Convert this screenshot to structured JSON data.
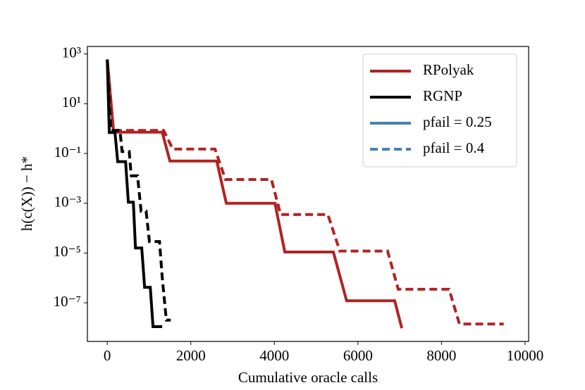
{
  "chart_data": {
    "type": "line",
    "log_y": true,
    "x_label": "Cumulative oracle calls",
    "y_label": "h(c(X)) − h*",
    "xlim": [
      -475,
      10085
    ],
    "xticks": [
      0,
      2000,
      4000,
      6000,
      8000,
      10000
    ],
    "ylim": [
      2.8e-09,
      2000
    ],
    "yticks": [
      {
        "value": 1e-07,
        "label": "10⁻⁷"
      },
      {
        "value": 1e-05,
        "label": "10⁻⁵"
      },
      {
        "value": 0.001,
        "label": "10⁻³"
      },
      {
        "value": 0.1,
        "label": "10⁻¹"
      },
      {
        "value": 10,
        "label": "10¹"
      },
      {
        "value": 1000,
        "label": "10³"
      }
    ],
    "legend": [
      {
        "label": "RPolyak",
        "color": "#b22222",
        "dashed": false
      },
      {
        "label": "RGNP",
        "color": "#000000",
        "dashed": false
      },
      {
        "label": "pfail = 0.25",
        "color": "#4682b4",
        "dashed": false
      },
      {
        "label": "pfail = 0.4",
        "color": "#4682b4",
        "dashed": true
      }
    ],
    "legend_position": "upper right",
    "series": [
      {
        "color": "#b22222",
        "dashed": false,
        "x": [
          0,
          150,
          1315,
          1500,
          2620,
          2850,
          4013,
          4250,
          5413,
          5730,
          6880,
          7050
        ],
        "values": [
          600,
          0.72,
          0.72,
          0.05,
          0.05,
          0.001,
          0.001,
          1.1e-05,
          1.1e-05,
          1.2e-07,
          1.2e-07,
          9.5e-09
        ]
      },
      {
        "color": "#b22222",
        "dashed": true,
        "x": [
          0,
          150,
          1350,
          1570,
          2580,
          2830,
          3930,
          4150,
          5280,
          5565,
          6710,
          6965,
          8180,
          8430,
          9490
        ],
        "values": [
          600,
          0.85,
          0.85,
          0.15,
          0.15,
          0.009,
          0.009,
          0.00035,
          0.00035,
          1.2e-05,
          1.2e-05,
          3.5e-07,
          3.5e-07,
          1.4e-08,
          1.4e-08
        ]
      },
      {
        "color": "#000000",
        "dashed": false,
        "x": [
          0,
          50,
          185,
          250,
          440,
          505,
          625,
          675,
          825,
          895,
          1030,
          1095,
          1315
        ],
        "values": [
          600,
          0.7,
          0.7,
          0.047,
          0.047,
          0.0011,
          0.0011,
          1.6e-05,
          1.6e-05,
          4.2e-07,
          4.2e-07,
          1.1e-08,
          1.1e-08
        ]
      },
      {
        "color": "#000000",
        "dashed": true,
        "x": [
          0,
          85,
          305,
          355,
          525,
          575,
          725,
          810,
          930,
          1010,
          1250,
          1315,
          1415,
          1520
        ],
        "values": [
          600,
          0.85,
          0.85,
          0.12,
          0.12,
          0.0126,
          0.0126,
          0.00048,
          0.00048,
          2.9e-05,
          2.9e-05,
          1.1e-06,
          2e-08,
          2e-08
        ]
      }
    ]
  }
}
